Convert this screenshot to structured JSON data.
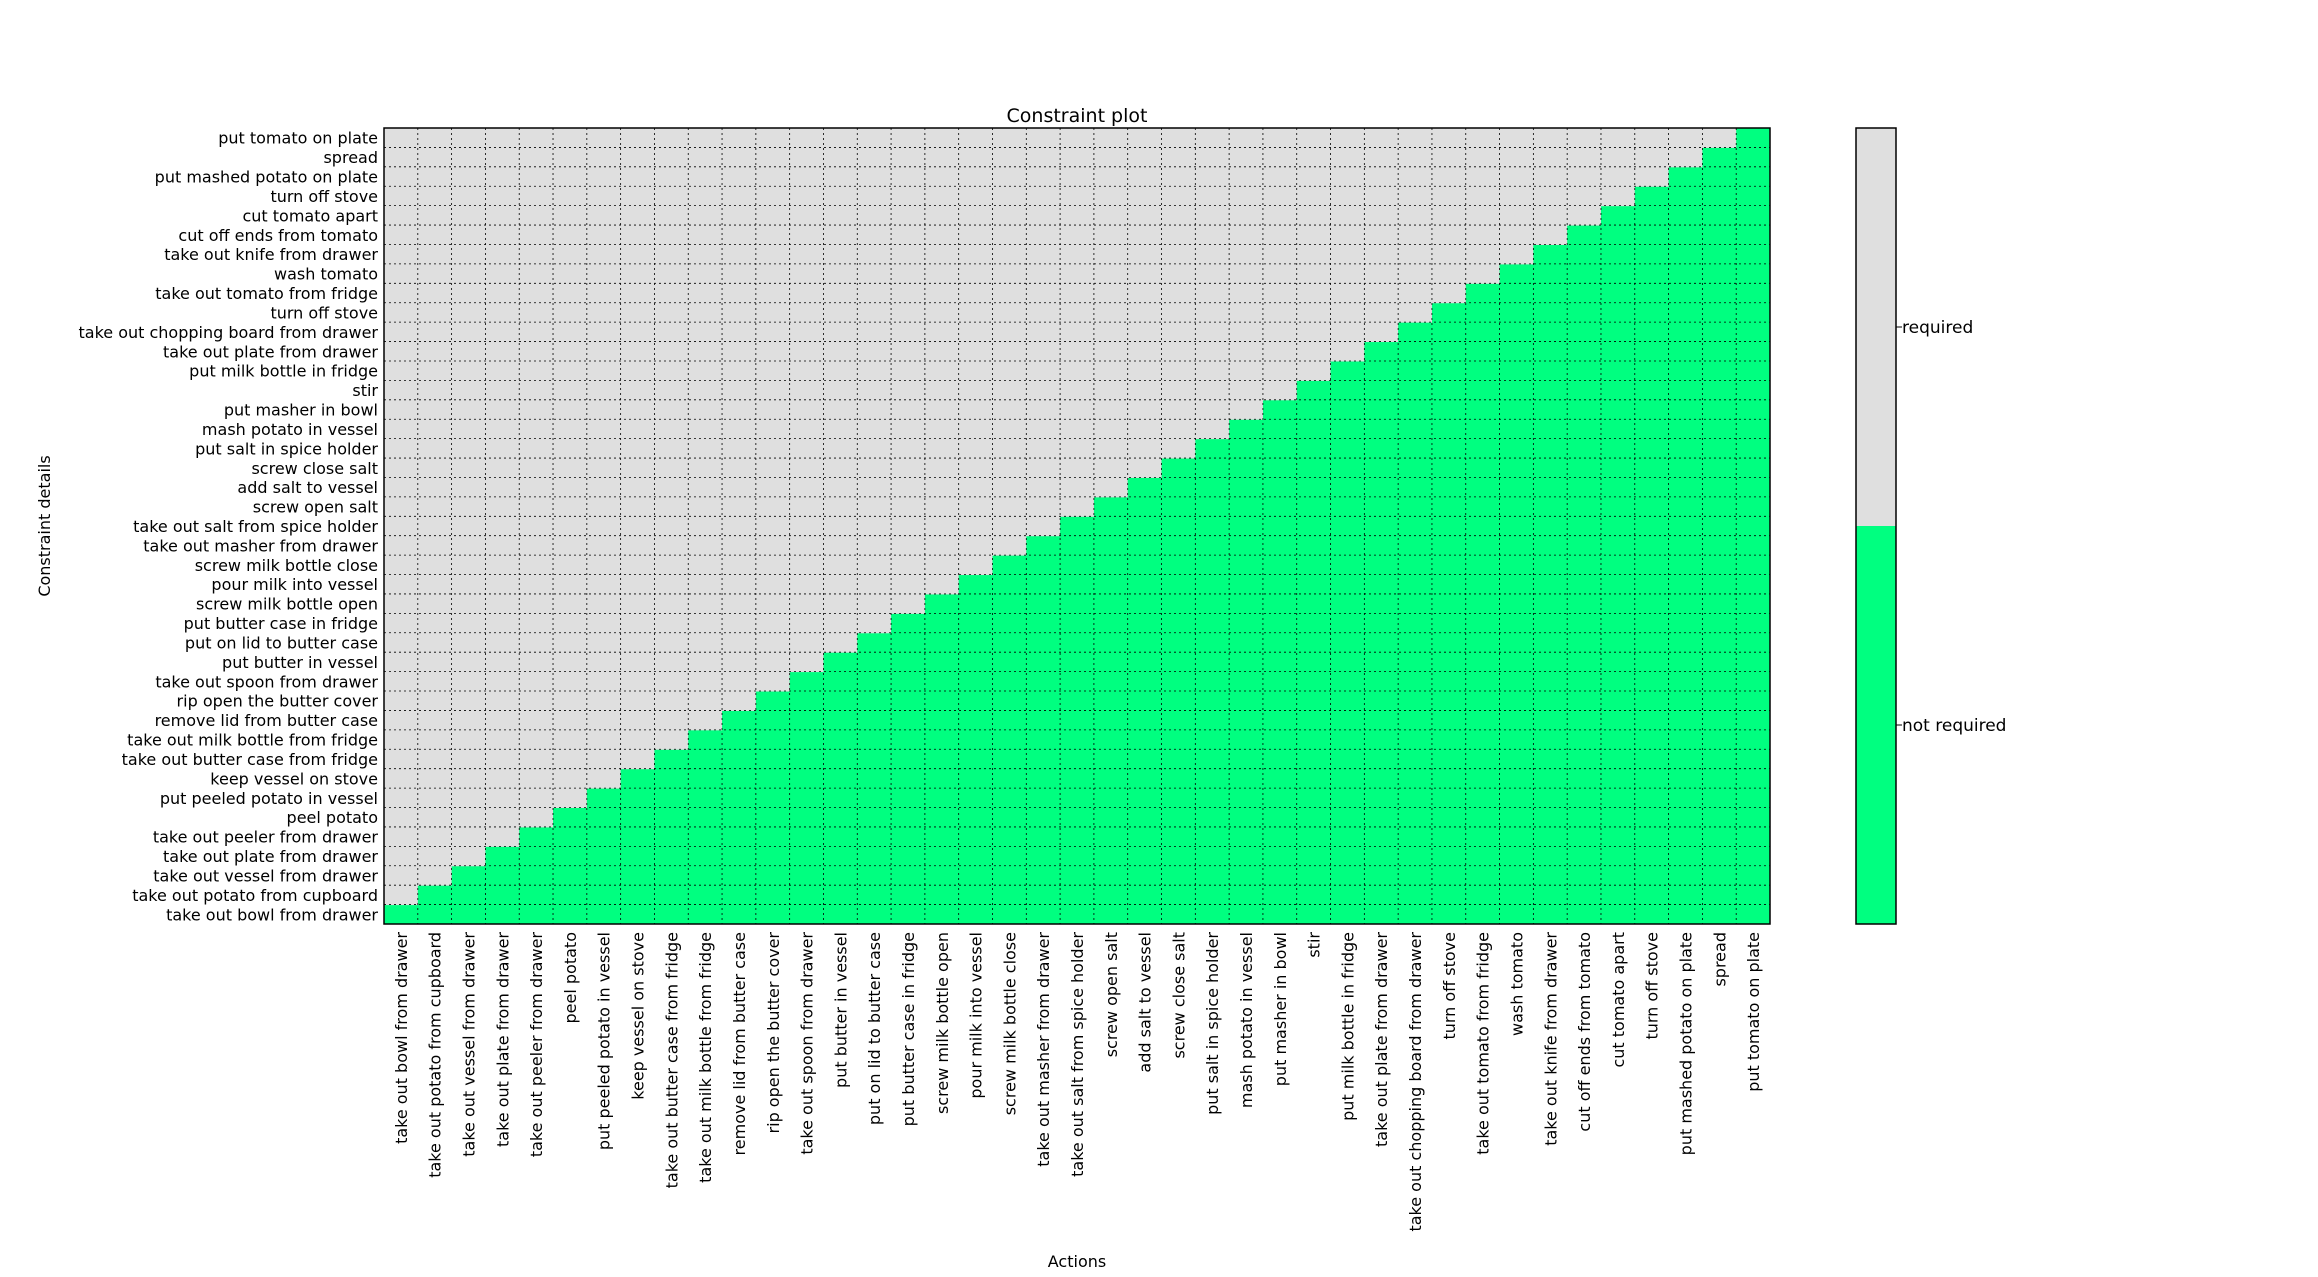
{
  "chart_data": {
    "type": "heatmap",
    "title": "Constraint plot",
    "xlabel": "Actions",
    "ylabel": "Constraint details",
    "grid": true,
    "legend_placement": "right",
    "x": [
      "take out bowl from drawer",
      "take out potato from cupboard",
      "take out vessel from drawer",
      "take out plate from drawer",
      "take out peeler from drawer",
      "peel potato",
      "put peeled potato in vessel",
      "keep vessel on stove",
      "take out butter case from fridge",
      "take out milk bottle from fridge",
      "remove lid from butter case",
      "rip open the butter cover",
      "take out spoon from drawer",
      "put butter in vessel",
      "put on lid to butter case",
      "put butter case in fridge",
      "screw milk bottle open",
      "pour milk into vessel",
      "screw milk bottle close",
      "take out masher from drawer",
      "take out salt from spice holder",
      "screw open salt",
      "add salt to vessel",
      "screw close salt",
      "put salt in spice holder",
      "mash potato in vessel",
      "put masher in bowl",
      "stir",
      "put milk bottle in fridge",
      "take out plate from drawer",
      "take out chopping board from drawer",
      "turn off stove",
      "take out tomato from fridge",
      "wash tomato",
      "take out knife from drawer",
      "cut off ends from tomato",
      "cut tomato apart",
      "turn off stove",
      "put mashed potato on plate",
      "spread",
      "put tomato on plate"
    ],
    "y": [
      "take out bowl from drawer",
      "take out potato from cupboard",
      "take out vessel from drawer",
      "take out plate from drawer",
      "take out peeler from drawer",
      "peel potato",
      "put peeled potato in vessel",
      "keep vessel on stove",
      "take out butter case from fridge",
      "take out milk bottle from fridge",
      "remove lid from butter case",
      "rip open the butter cover",
      "take out spoon from drawer",
      "put butter in vessel",
      "put on lid to butter case",
      "put butter case in fridge",
      "screw milk bottle open",
      "pour milk into vessel",
      "screw milk bottle close",
      "take out masher from drawer",
      "take out salt from spice holder",
      "screw open salt",
      "add salt to vessel",
      "screw close salt",
      "put salt in spice holder",
      "mash potato in vessel",
      "put masher in bowl",
      "stir",
      "put milk bottle in fridge",
      "take out plate from drawer",
      "take out chopping board from drawer",
      "turn off stove",
      "take out tomato from fridge",
      "wash tomato ",
      "take out knife from drawer",
      "cut off ends from tomato",
      "cut tomato apart",
      "turn off stove",
      "put mashed potato on plate",
      "spread",
      "put tomato on plate"
    ],
    "rule": "cell(action i, constraint j) is not required when i >= j, otherwise required",
    "categories": [
      "required",
      "not required"
    ],
    "colors": {
      "required": "#dfdfdf",
      "not required": "#00ff80"
    }
  }
}
